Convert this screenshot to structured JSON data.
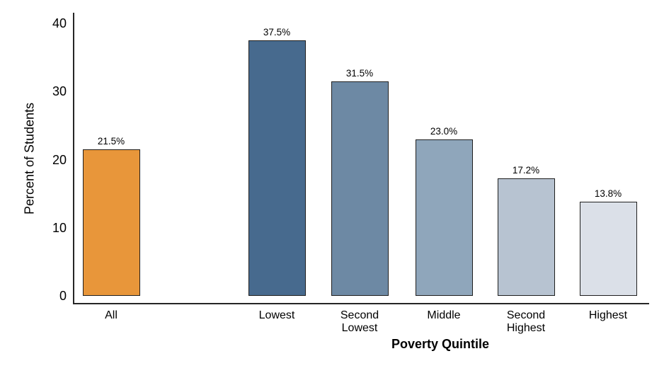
{
  "chart_data": {
    "type": "bar",
    "title": "",
    "ylabel": "Percent of Students",
    "xlabel": "Poverty Quintile",
    "ylim": [
      0,
      40
    ],
    "yticks": [
      0,
      10,
      20,
      30,
      40
    ],
    "grid": false,
    "legend": "none",
    "categories": [
      "All",
      "Lowest",
      "Second Lowest",
      "Middle",
      "Second Highest",
      "Highest"
    ],
    "category_label_lines": [
      [
        "All"
      ],
      [
        "Lowest"
      ],
      [
        "Second",
        "Lowest"
      ],
      [
        "Middle"
      ],
      [
        "Second",
        "Highest"
      ],
      [
        "Highest"
      ]
    ],
    "values": [
      21.5,
      37.5,
      31.5,
      23.0,
      17.2,
      13.8
    ],
    "value_labels": [
      "21.5%",
      "37.5%",
      "31.5%",
      "23.0%",
      "17.2%",
      "13.8%"
    ],
    "bar_colors": [
      "#e8963a",
      "#476a8e",
      "#6d89a4",
      "#8fa6bb",
      "#b7c3d1",
      "#dbe0e8"
    ],
    "bar_border_color": "#1f1f1f",
    "axis_color": "#262626",
    "background_color": "#ffffff",
    "group_note": "single 'All' bar separated by a gap from the five quintile bars"
  }
}
